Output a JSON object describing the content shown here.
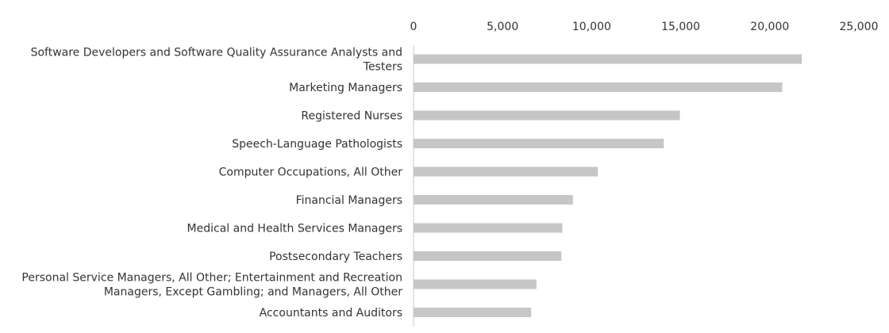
{
  "chart_data": {
    "type": "bar",
    "orientation": "horizontal",
    "title": "",
    "xlabel": "",
    "ylabel": "",
    "xlim": [
      0,
      25000
    ],
    "x_ticks": [
      "0",
      "5,000",
      "10,000",
      "15,000",
      "20,000",
      "25,000"
    ],
    "x_tick_values": [
      0,
      5000,
      10000,
      15000,
      20000,
      25000
    ],
    "x_axis_position": "top",
    "grid": false,
    "legend": "none",
    "bar_color": "#c4c6c8",
    "categories": [
      "Software Developers and Software Quality Assurance Analysts and Testers",
      "Marketing Managers",
      "Registered Nurses",
      "Speech-Language Pathologists",
      "Computer Occupations, All Other",
      "Financial Managers",
      "Medical and Health Services Managers",
      "Postsecondary Teachers",
      "Personal Service Managers, All Other; Entertainment and Recreation Managers, Except Gambling; and Managers, All Other",
      "Accountants and Auditors"
    ],
    "category_lines": [
      [
        "Software Developers and Software Quality Assurance Analysts and",
        "Testers"
      ],
      [
        "Marketing Managers"
      ],
      [
        "Registered Nurses"
      ],
      [
        "Speech-Language Pathologists"
      ],
      [
        "Computer Occupations, All Other"
      ],
      [
        "Financial Managers"
      ],
      [
        "Medical and Health Services Managers"
      ],
      [
        "Postsecondary Teachers"
      ],
      [
        "Personal Service Managers, All Other; Entertainment and Recreation",
        "Managers, Except Gambling; and Managers, All Other"
      ],
      [
        "Accountants and Auditors"
      ]
    ],
    "values": [
      21800,
      20700,
      14950,
      14050,
      10350,
      8950,
      8350,
      8300,
      6900,
      6600
    ]
  }
}
